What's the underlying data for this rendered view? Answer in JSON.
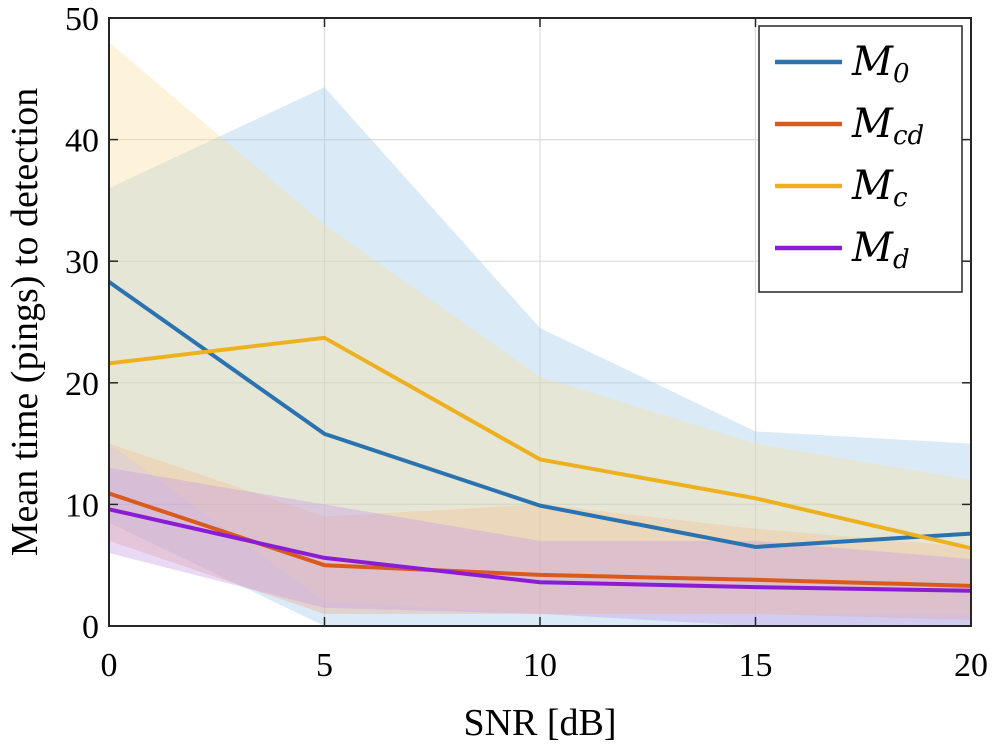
{
  "chart_data": {
    "type": "line",
    "title": "",
    "xlabel": "SNR [dB]",
    "ylabel": "Mean time (pings) to detection",
    "x": [
      0,
      5,
      10,
      15,
      20
    ],
    "xlim": [
      0,
      20
    ],
    "ylim": [
      0,
      50
    ],
    "xticks": [
      0,
      5,
      10,
      15,
      20
    ],
    "yticks": [
      0,
      10,
      20,
      30,
      40,
      50
    ],
    "xtick_labels": [
      "0",
      "5",
      "10",
      "15",
      "20"
    ],
    "ytick_labels": [
      "0",
      "10",
      "20",
      "30",
      "40",
      "50"
    ],
    "grid": true,
    "legend_position": "top-right",
    "series": [
      {
        "name": "M0",
        "legend_main": "M",
        "legend_sub": "0",
        "color": "#2a73b0",
        "band_color": "#9ec8ea",
        "values": [
          28.3,
          15.8,
          9.9,
          6.5,
          7.6
        ],
        "upper": [
          36.0,
          44.3,
          24.5,
          16.0,
          15.0
        ],
        "lower": [
          8.5,
          0.0,
          0.0,
          0.0,
          0.0
        ]
      },
      {
        "name": "Mcd",
        "legend_main": "M",
        "legend_sub": "cd",
        "color": "#d95a1e",
        "band_color": "#f0aa88",
        "values": [
          10.9,
          5.0,
          4.2,
          3.8,
          3.3
        ],
        "upper": [
          15.0,
          9.0,
          10.0,
          8.0,
          6.5
        ],
        "lower": [
          7.0,
          1.0,
          1.0,
          1.0,
          0.5
        ]
      },
      {
        "name": "Mc",
        "legend_main": "M",
        "legend_sub": "c",
        "color": "#edb120",
        "band_color": "#f9e0a0",
        "values": [
          21.6,
          23.7,
          13.7,
          10.5,
          6.4
        ],
        "upper": [
          48.0,
          33.0,
          20.5,
          15.0,
          12.0
        ],
        "lower": [
          15.0,
          2.0,
          1.0,
          1.0,
          1.0
        ]
      },
      {
        "name": "Md",
        "legend_main": "M",
        "legend_sub": "d",
        "color": "#8a1cd6",
        "band_color": "#c49ae6",
        "values": [
          9.6,
          5.6,
          3.6,
          3.2,
          2.9
        ],
        "upper": [
          13.0,
          10.0,
          7.0,
          7.0,
          5.5
        ],
        "lower": [
          6.0,
          1.5,
          1.0,
          0.0,
          0.0
        ]
      }
    ]
  }
}
